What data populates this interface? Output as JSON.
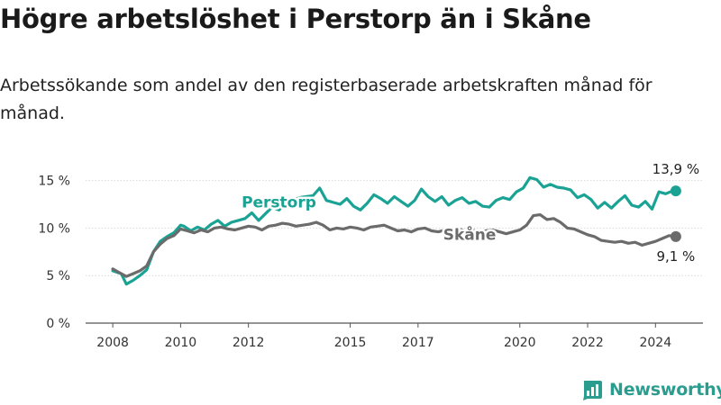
{
  "title": "Högre arbetslöshet i Perstorp än i Skåne",
  "subtitle": "Arbetssökande som andel av den registerbaserade arbetskraften månad för månad.",
  "brand": {
    "name": "Newsworthy",
    "icon": "newsworthy-chart-icon",
    "color": "#2a9d8f"
  },
  "chart_data": {
    "type": "line",
    "x_ticks": [
      2008,
      2010,
      2012,
      2015,
      2017,
      2020,
      2022,
      2024
    ],
    "y_ticks": [
      0,
      5,
      10,
      15
    ],
    "y_tick_labels": [
      "0 %",
      "5 %",
      "10 %",
      "15 %"
    ],
    "xlim": [
      2007.2,
      2025.4
    ],
    "ylim": [
      0,
      16
    ],
    "series": [
      {
        "name": "Perstorp",
        "color": "#1aa394",
        "end_label": "13,9 %",
        "x": [
          2008.0,
          2008.25,
          2008.4,
          2008.6,
          2008.8,
          2009.0,
          2009.2,
          2009.4,
          2009.6,
          2009.8,
          2010.0,
          2010.1,
          2010.3,
          2010.5,
          2010.7,
          2010.9,
          2011.1,
          2011.3,
          2011.5,
          2011.7,
          2011.9,
          2012.1,
          2012.3,
          2012.5,
          2012.7,
          2012.9,
          2013.1,
          2013.3,
          2013.5,
          2013.7,
          2013.9,
          2014.1,
          2014.3,
          2014.5,
          2014.7,
          2014.9,
          2015.1,
          2015.3,
          2015.5,
          2015.7,
          2015.9,
          2016.1,
          2016.3,
          2016.5,
          2016.7,
          2016.9,
          2017.1,
          2017.3,
          2017.5,
          2017.7,
          2017.9,
          2018.1,
          2018.3,
          2018.5,
          2018.7,
          2018.9,
          2019.1,
          2019.3,
          2019.5,
          2019.7,
          2019.9,
          2020.1,
          2020.3,
          2020.5,
          2020.7,
          2020.9,
          2021.1,
          2021.3,
          2021.5,
          2021.7,
          2021.9,
          2022.1,
          2022.3,
          2022.5,
          2022.7,
          2022.9,
          2023.1,
          2023.3,
          2023.5,
          2023.7,
          2023.9,
          2024.1,
          2024.3,
          2024.5,
          2024.6
        ],
        "values": [
          5.5,
          5.2,
          4.1,
          4.5,
          5.0,
          5.6,
          7.5,
          8.6,
          9.1,
          9.5,
          10.3,
          10.2,
          9.7,
          10.1,
          9.8,
          10.4,
          10.8,
          10.2,
          10.6,
          10.8,
          11.0,
          11.6,
          10.8,
          11.5,
          12.2,
          11.9,
          12.6,
          12.9,
          13.2,
          13.3,
          13.4,
          14.2,
          12.9,
          12.7,
          12.5,
          13.1,
          12.3,
          11.9,
          12.6,
          13.5,
          13.1,
          12.6,
          13.3,
          12.8,
          12.3,
          12.9,
          14.1,
          13.3,
          12.8,
          13.3,
          12.4,
          12.9,
          13.2,
          12.6,
          12.8,
          12.3,
          12.2,
          12.9,
          13.2,
          13.0,
          13.8,
          14.2,
          15.3,
          15.1,
          14.3,
          14.6,
          14.3,
          14.2,
          14.0,
          13.2,
          13.5,
          13.0,
          12.1,
          12.7,
          12.1,
          12.8,
          13.4,
          12.4,
          12.2,
          12.8,
          12.0,
          13.8,
          13.6,
          13.9,
          13.9
        ]
      },
      {
        "name": "Skåne",
        "color": "#6b6b6b",
        "end_label": "9,1 %",
        "x": [
          2008.0,
          2008.2,
          2008.4,
          2008.6,
          2008.8,
          2009.0,
          2009.2,
          2009.4,
          2009.6,
          2009.8,
          2010.0,
          2010.2,
          2010.4,
          2010.6,
          2010.8,
          2011.0,
          2011.2,
          2011.4,
          2011.6,
          2011.8,
          2012.0,
          2012.2,
          2012.4,
          2012.6,
          2012.8,
          2013.0,
          2013.2,
          2013.4,
          2013.6,
          2013.8,
          2014.0,
          2014.2,
          2014.4,
          2014.6,
          2014.8,
          2015.0,
          2015.2,
          2015.4,
          2015.6,
          2015.8,
          2016.0,
          2016.2,
          2016.4,
          2016.6,
          2016.8,
          2017.0,
          2017.2,
          2017.4,
          2017.6,
          2017.8,
          2018.0,
          2018.2,
          2018.4,
          2018.6,
          2018.8,
          2019.0,
          2019.2,
          2019.4,
          2019.6,
          2019.8,
          2020.0,
          2020.2,
          2020.4,
          2020.6,
          2020.8,
          2021.0,
          2021.2,
          2021.4,
          2021.6,
          2021.8,
          2022.0,
          2022.2,
          2022.4,
          2022.6,
          2022.8,
          2023.0,
          2023.2,
          2023.4,
          2023.6,
          2023.8,
          2024.0,
          2024.2,
          2024.4,
          2024.6
        ],
        "values": [
          5.7,
          5.3,
          4.9,
          5.2,
          5.5,
          6.0,
          7.5,
          8.3,
          8.9,
          9.2,
          9.9,
          9.7,
          9.5,
          9.8,
          9.6,
          10.0,
          10.1,
          9.9,
          9.8,
          10.0,
          10.2,
          10.1,
          9.8,
          10.2,
          10.3,
          10.5,
          10.4,
          10.2,
          10.3,
          10.4,
          10.6,
          10.3,
          9.8,
          10.0,
          9.9,
          10.1,
          10.0,
          9.8,
          10.1,
          10.2,
          10.3,
          10.0,
          9.7,
          9.8,
          9.6,
          9.9,
          10.0,
          9.7,
          9.6,
          9.8,
          9.9,
          9.9,
          9.7,
          9.8,
          9.6,
          9.7,
          9.8,
          9.6,
          9.4,
          9.6,
          9.8,
          10.3,
          11.3,
          11.4,
          10.9,
          11.0,
          10.6,
          10.0,
          9.9,
          9.6,
          9.3,
          9.1,
          8.7,
          8.6,
          8.5,
          8.6,
          8.4,
          8.5,
          8.2,
          8.4,
          8.6,
          8.9,
          9.2,
          9.1
        ]
      }
    ]
  }
}
